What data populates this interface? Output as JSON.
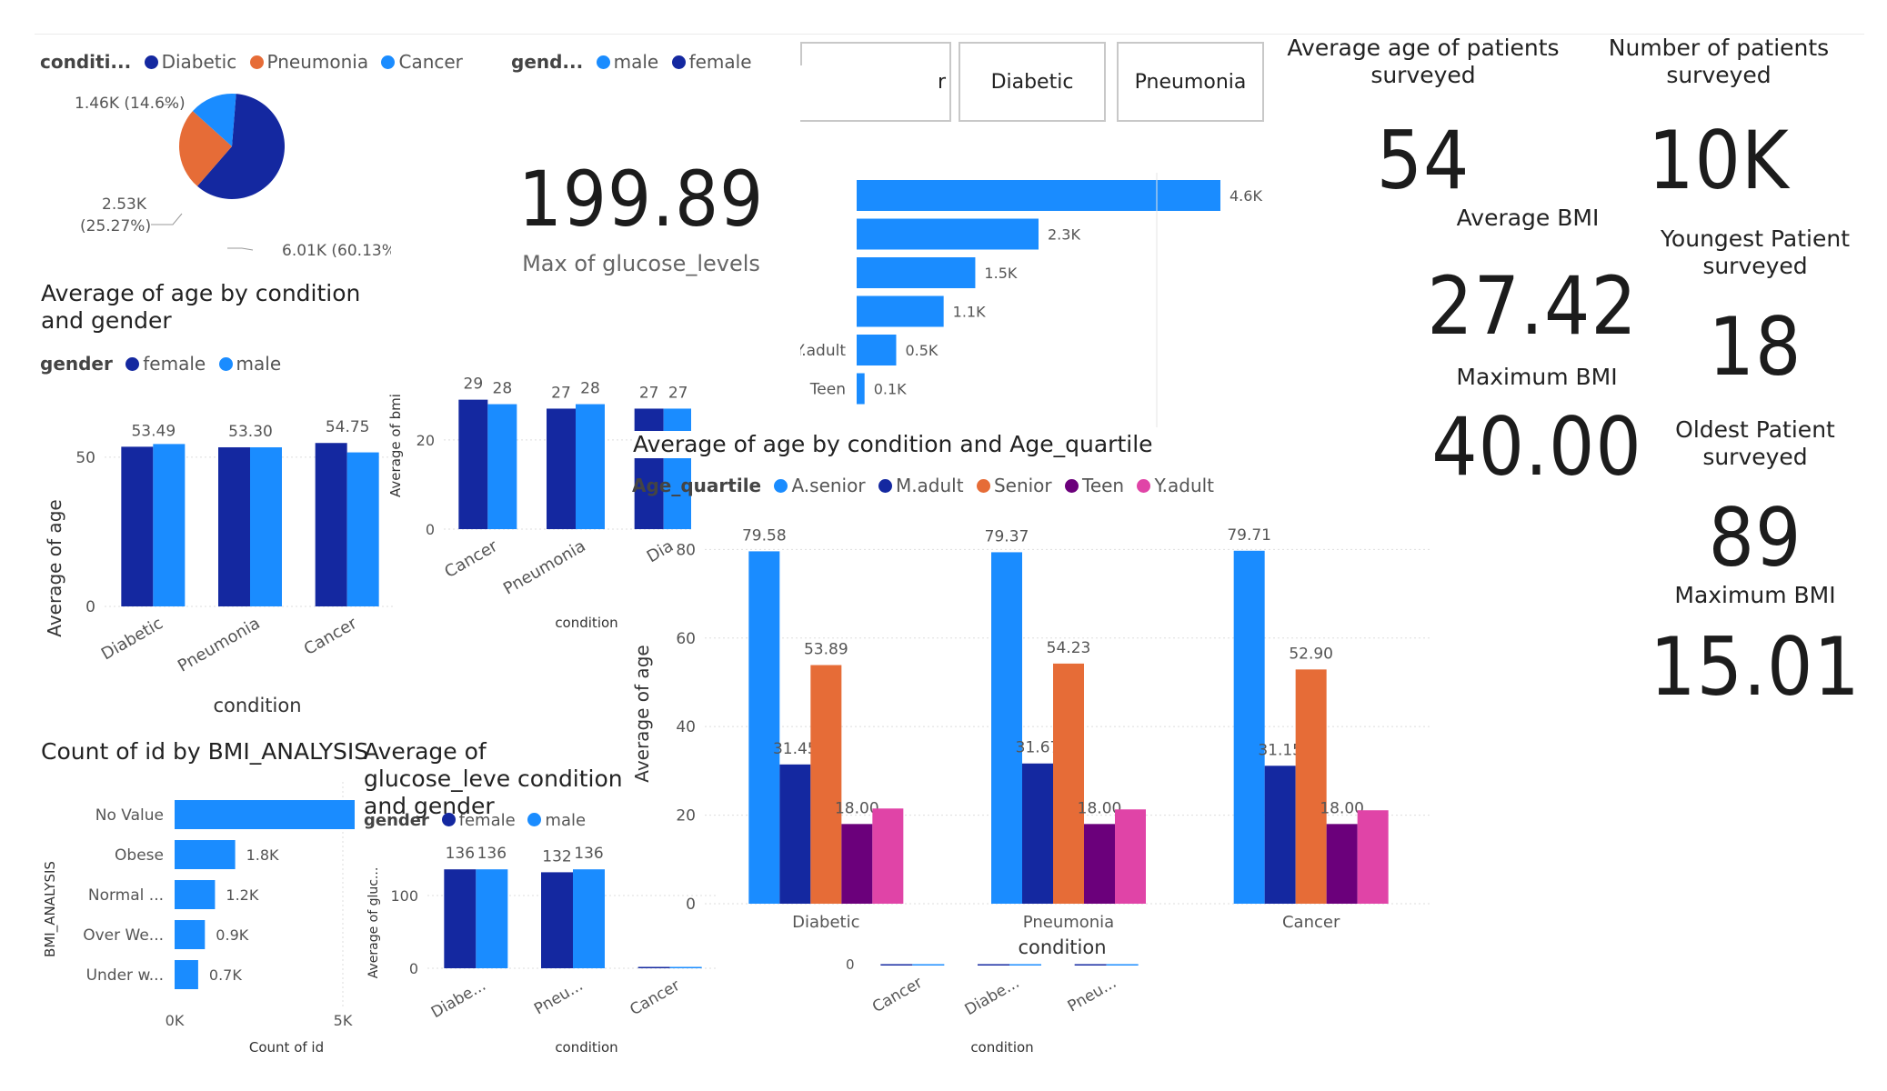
{
  "colors": {
    "blue_dark": "#1428a0",
    "blue_light": "#1a8cff",
    "orange": "#e66c37",
    "purple": "#6b007b",
    "pink": "#e044a7",
    "grid": "#dddddd",
    "axis_text": "#555555"
  },
  "pie": {
    "legend_title": "conditi...",
    "legend": [
      "Diabetic",
      "Pneumonia",
      "Cancer"
    ],
    "labels": [
      "1.46K (14.6%)",
      "2.53K",
      "(25.27%)",
      "6.01K (60.13%"
    ]
  },
  "gender_legend": {
    "title": "gend...",
    "items": [
      "male",
      "female"
    ]
  },
  "glucose_card": {
    "value": "199.89",
    "label": "Max of glucose_levels"
  },
  "slicer": {
    "buttons": [
      "r",
      "Diabetic",
      "Pneumonia"
    ]
  },
  "kpis": {
    "avg_age_label": "Average age of patients surveyed",
    "avg_age_value": "54",
    "num_patients_label": "Number of patients surveyed",
    "num_patients_value": "10K",
    "avg_bmi_label": "Average BMI",
    "avg_bmi_value": "27.42",
    "youngest_label": "Youngest Patient surveyed",
    "youngest_value": "18",
    "max_bmi_label": "Maximum BMI",
    "max_bmi_value": "40.00",
    "oldest_label": "Oldest Patient surveyed",
    "oldest_value": "89",
    "max_bmi2_label": "Maximum BMI",
    "max_bmi2_value": "15.01"
  },
  "age_gender": {
    "title": "Average of age by condition and gender",
    "legend_title": "gender",
    "legend": [
      "female",
      "male"
    ],
    "ylabel": "Average of age",
    "xlabel": "condition"
  },
  "bmi_gender": {
    "ylabel": "Average of bmi",
    "xlabel": "condition"
  },
  "quartile_chart": {
    "title": "Average of age by condition and Age_quartile",
    "legend_title": "Age_quartile",
    "legend": [
      "A.senior",
      "M.adult",
      "Senior",
      "Teen",
      "Y.adult"
    ],
    "ylabel": "Average of age",
    "xlabel": "condition"
  },
  "bmi_analysis": {
    "title": "Count of id by BMI_ANALYSIS",
    "ylabel": "BMI_ANALYSIS",
    "xlabel": "Count of id"
  },
  "glucose_gender": {
    "title": "Average of glucose_leve condition and gender",
    "legend_title": "gender",
    "legend": [
      "female",
      "male"
    ],
    "ylabel": "Average of gluc...",
    "xlabel": "condition"
  },
  "extra_axis": {
    "xlabel": "condition",
    "tick": "0"
  },
  "chart_data": [
    {
      "type": "pie",
      "categories": [
        "Diabetic",
        "Pneumonia",
        "Cancer"
      ],
      "values": [
        6010,
        2530,
        1460
      ]
    },
    {
      "type": "bar",
      "orientation": "horizontal",
      "categories": [
        "",
        "",
        "",
        "",
        "Y.adult",
        "Teen"
      ],
      "values": [
        4.6,
        2.3,
        1.5,
        1.1,
        0.5,
        0.1
      ],
      "labels": [
        "4.6K",
        "2.3K",
        "1.5K",
        "1.1K",
        "0.5K",
        "0.1K"
      ],
      "xlabel": "",
      "ylabel": ""
    },
    {
      "type": "bar",
      "title": "Average of age by condition and gender",
      "categories": [
        "Diabetic",
        "Pneumonia",
        "Cancer"
      ],
      "series": [
        {
          "name": "female",
          "values": [
            53.49,
            53.3,
            54.75
          ]
        },
        {
          "name": "male",
          "values": [
            54.4,
            53.3,
            51.6
          ]
        }
      ],
      "labels": [
        "53.49",
        "53.30",
        "54.75"
      ],
      "ylim": [
        0,
        60
      ],
      "yticks": [
        "0",
        "50"
      ],
      "xlabel": "condition",
      "ylabel": "Average of age"
    },
    {
      "type": "bar",
      "categories": [
        "Cancer",
        "Pneumonia",
        "Dia"
      ],
      "series": [
        {
          "name": "female",
          "values": [
            29,
            27,
            27
          ]
        },
        {
          "name": "male",
          "values": [
            28,
            28,
            27
          ]
        }
      ],
      "ylim": [
        0,
        33
      ],
      "yticks": [
        "0",
        "20"
      ],
      "xlabel": "condition",
      "ylabel": "Average of bmi"
    },
    {
      "type": "bar",
      "title": "Average of age by condition and Age_quartile",
      "categories": [
        "Diabetic",
        "Pneumonia",
        "Cancer"
      ],
      "series": [
        {
          "name": "A.senior",
          "values": [
            79.58,
            79.37,
            79.71
          ]
        },
        {
          "name": "M.adult",
          "values": [
            31.45,
            31.67,
            31.15
          ]
        },
        {
          "name": "Senior",
          "values": [
            53.89,
            54.23,
            52.9
          ]
        },
        {
          "name": "Teen",
          "values": [
            18.0,
            18.0,
            18.0
          ]
        },
        {
          "name": "Y.adult",
          "values": [
            21.5,
            21.3,
            21.1
          ]
        }
      ],
      "labels": [
        [
          "79.58",
          "31.45",
          "53.89",
          "18.00",
          ""
        ],
        [
          "79.37",
          "31.67",
          "54.23",
          "18.00",
          ""
        ],
        [
          "79.71",
          "31.15",
          "52.90",
          "18.00",
          ""
        ]
      ],
      "ylim": [
        0,
        85
      ],
      "yticks": [
        "0",
        "20",
        "40",
        "60",
        "80"
      ],
      "xlabel": "condition",
      "ylabel": "Average of age"
    },
    {
      "type": "bar",
      "orientation": "horizontal",
      "title": "Count of id by BMI_ANALYSIS",
      "categories": [
        "No Value",
        "Obese",
        "Normal ...",
        "Over We...",
        "Under w..."
      ],
      "values": [
        5.4,
        1.8,
        1.2,
        0.9,
        0.7
      ],
      "labels": [
        "",
        "1.8K",
        "1.2K",
        "0.9K",
        "0.7K"
      ],
      "xticks": [
        "0K",
        "5K"
      ],
      "xlabel": "Count of id",
      "ylabel": "BMI_ANALYSIS"
    },
    {
      "type": "bar",
      "title": "Average of glucose_leve condition and gender",
      "categories": [
        "Diabe...",
        "Pneu...",
        "Cancer"
      ],
      "series": [
        {
          "name": "female",
          "values": [
            136,
            132,
            1
          ]
        },
        {
          "name": "male",
          "values": [
            136,
            136,
            1
          ]
        }
      ],
      "labels": [
        [
          "136",
          "136"
        ],
        [
          "132",
          "136"
        ],
        [
          "",
          ""
        ]
      ],
      "ylim": [
        0,
        150
      ],
      "yticks": [
        "0",
        "100"
      ],
      "xlabel": "condition",
      "ylabel": "Average of gluc..."
    },
    {
      "type": "bar",
      "categories": [
        "Cancer",
        "Diabe...",
        "Pneu..."
      ],
      "series": [
        {
          "name": "female",
          "values": [
            0,
            0,
            0
          ]
        },
        {
          "name": "male",
          "values": [
            0,
            0,
            0
          ]
        }
      ],
      "xlabel": "condition"
    }
  ]
}
